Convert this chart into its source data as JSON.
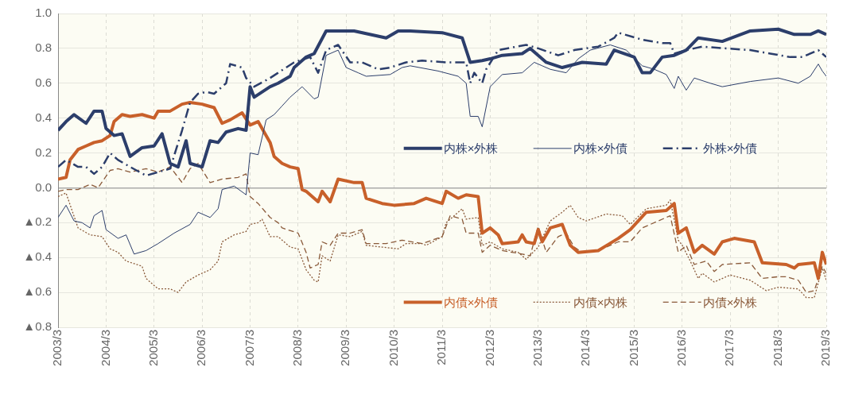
{
  "chart_data": {
    "type": "line",
    "xlim": [
      "2003-03",
      "2019-03"
    ],
    "xticks": [
      {
        "value": "2003-03",
        "label": "2003/3"
      },
      {
        "value": "2004-03",
        "label": "2004/3"
      },
      {
        "value": "2005-03",
        "label": "2005/3"
      },
      {
        "value": "2006-03",
        "label": "2006/3"
      },
      {
        "value": "2007-03",
        "label": "2007/3"
      },
      {
        "value": "2008-03",
        "label": "2008/3"
      },
      {
        "value": "2009-03",
        "label": "2009/3"
      },
      {
        "value": "2010-03",
        "label": "2010/3"
      },
      {
        "value": "2011-03",
        "label": "2011/3"
      },
      {
        "value": "2012-03",
        "label": "2012/3"
      },
      {
        "value": "2013-03",
        "label": "2013/3"
      },
      {
        "value": "2014-03",
        "label": "2014/3"
      },
      {
        "value": "2015-03",
        "label": "2015/3"
      },
      {
        "value": "2016-03",
        "label": "2016/3"
      },
      {
        "value": "2017-03",
        "label": "2017/3"
      },
      {
        "value": "2018-03",
        "label": "2018/3"
      },
      {
        "value": "2019-03",
        "label": "2019/3"
      }
    ],
    "ylim": [
      -0.8,
      1.0
    ],
    "yticks": [
      {
        "value": -0.8,
        "label": "▲0.8"
      },
      {
        "value": -0.6,
        "label": "▲0.6"
      },
      {
        "value": -0.4,
        "label": "▲0.4"
      },
      {
        "value": -0.2,
        "label": "▲0.2"
      },
      {
        "value": 0,
        "label": "0.0"
      },
      {
        "value": 0.2,
        "label": "0.2"
      },
      {
        "value": 0.4,
        "label": "0.4"
      },
      {
        "value": 0.6,
        "label": "0.6"
      },
      {
        "value": 0.8,
        "label": "0.8"
      },
      {
        "value": 1.0,
        "label": "1.0"
      }
    ],
    "grid": true,
    "legend": "right",
    "marker": "none",
    "series": [
      {
        "name": "内株×外株",
        "color": "#2c3e6b",
        "line_style": "solid",
        "x": [
          "2003-03",
          "2003-05",
          "2003-07",
          "2003-10",
          "2003-12",
          "2004-02",
          "2004-03",
          "2004-05",
          "2004-07",
          "2004-09",
          "2004-12",
          "2005-03",
          "2005-05",
          "2005-07",
          "2005-09",
          "2005-11",
          "2005-12",
          "2006-03",
          "2006-05",
          "2006-07",
          "2006-09",
          "2006-12",
          "2007-02",
          "2007-03",
          "2007-04",
          "2007-08",
          "2007-10",
          "2008-01",
          "2008-02",
          "2008-05",
          "2008-07",
          "2008-10",
          "2009-05",
          "2010-01",
          "2010-04",
          "2010-07",
          "2011-03",
          "2011-08",
          "2011-10",
          "2012-01",
          "2012-03",
          "2012-06",
          "2012-11",
          "2013-01",
          "2013-05",
          "2013-09",
          "2014-02",
          "2014-08",
          "2014-10",
          "2015-03",
          "2015-05",
          "2015-07",
          "2015-10",
          "2016-01",
          "2016-04",
          "2016-07",
          "2017-01",
          "2017-08",
          "2018-03",
          "2018-07",
          "2018-11",
          "2019-01",
          "2019-03"
        ],
        "values": [
          0.33,
          0.38,
          0.42,
          0.37,
          0.44,
          0.44,
          0.34,
          0.3,
          0.31,
          0.18,
          0.23,
          0.24,
          0.31,
          0.14,
          0.12,
          0.27,
          0.14,
          0.12,
          0.27,
          0.26,
          0.32,
          0.34,
          0.33,
          0.58,
          0.52,
          0.58,
          0.6,
          0.64,
          0.69,
          0.75,
          0.77,
          0.9,
          0.9,
          0.86,
          0.9,
          0.9,
          0.89,
          0.86,
          0.72,
          0.73,
          0.74,
          0.76,
          0.77,
          0.8,
          0.72,
          0.69,
          0.72,
          0.71,
          0.79,
          0.75,
          0.66,
          0.66,
          0.75,
          0.76,
          0.79,
          0.86,
          0.84,
          0.9,
          0.91,
          0.88,
          0.88,
          0.9,
          0.88
        ]
      },
      {
        "name": "内株×外債",
        "color": "#2c3e6b",
        "line_style": "solid",
        "x": [
          "2003-03",
          "2003-05",
          "2003-07",
          "2003-09",
          "2003-11",
          "2003-12",
          "2004-02",
          "2004-03",
          "2004-06",
          "2004-08",
          "2004-10",
          "2005-01",
          "2005-04",
          "2005-08",
          "2005-12",
          "2006-02",
          "2006-05",
          "2006-07",
          "2006-08",
          "2006-11",
          "2007-02",
          "2007-03",
          "2007-05",
          "2007-07",
          "2007-09",
          "2007-11",
          "2008-01",
          "2008-04",
          "2008-07",
          "2008-08",
          "2008-10",
          "2009-01",
          "2009-03",
          "2009-06",
          "2009-08",
          "2010-02",
          "2010-05",
          "2010-07",
          "2011-02",
          "2011-07",
          "2011-09",
          "2011-10",
          "2011-12",
          "2012-01",
          "2012-03",
          "2012-06",
          "2012-11",
          "2013-02",
          "2013-04",
          "2013-06",
          "2013-10",
          "2014-01",
          "2014-04",
          "2014-09",
          "2015-01",
          "2015-05",
          "2015-08",
          "2015-11",
          "2016-01",
          "2016-02",
          "2016-04",
          "2016-06",
          "2016-10",
          "2017-01",
          "2017-08",
          "2018-03",
          "2018-08",
          "2018-11",
          "2019-01",
          "2019-02",
          "2019-03"
        ],
        "values": [
          -0.17,
          -0.1,
          -0.19,
          -0.2,
          -0.23,
          -0.16,
          -0.13,
          -0.24,
          -0.29,
          -0.27,
          -0.38,
          -0.36,
          -0.32,
          -0.26,
          -0.21,
          -0.14,
          -0.17,
          -0.12,
          -0.01,
          0.01,
          -0.04,
          0.2,
          0.19,
          0.39,
          0.42,
          0.47,
          0.52,
          0.58,
          0.51,
          0.52,
          0.76,
          0.79,
          0.69,
          0.66,
          0.64,
          0.65,
          0.69,
          0.7,
          0.67,
          0.64,
          0.6,
          0.41,
          0.41,
          0.35,
          0.58,
          0.65,
          0.66,
          0.72,
          0.7,
          0.68,
          0.66,
          0.74,
          0.79,
          0.82,
          0.79,
          0.7,
          0.68,
          0.65,
          0.57,
          0.64,
          0.56,
          0.63,
          0.6,
          0.58,
          0.61,
          0.63,
          0.6,
          0.64,
          0.71,
          0.67,
          0.64
        ]
      },
      {
        "name": "外株×外債",
        "color": "#2c3e6b",
        "line_style": "dashdot",
        "x": [
          "2003-03",
          "2003-05",
          "2003-08",
          "2003-10",
          "2003-12",
          "2004-02",
          "2004-04",
          "2004-06",
          "2004-09",
          "2005-01",
          "2005-04",
          "2005-07",
          "2005-10",
          "2005-12",
          "2006-02",
          "2006-04",
          "2006-06",
          "2006-09",
          "2006-10",
          "2007-01",
          "2007-02",
          "2007-04",
          "2007-08",
          "2007-10",
          "2008-02",
          "2008-06",
          "2008-08",
          "2008-10",
          "2009-01",
          "2009-04",
          "2009-07",
          "2009-11",
          "2010-02",
          "2010-06",
          "2010-10",
          "2011-04",
          "2011-09",
          "2011-10",
          "2011-11",
          "2012-01",
          "2012-02",
          "2012-05",
          "2012-12",
          "2013-03",
          "2013-08",
          "2013-12",
          "2014-06",
          "2014-10",
          "2014-11",
          "2015-05",
          "2015-10",
          "2015-12",
          "2016-01",
          "2016-04",
          "2016-08",
          "2017-02",
          "2017-08",
          "2018-01",
          "2018-06",
          "2018-09",
          "2019-01",
          "2019-03"
        ],
        "values": [
          0.12,
          0.16,
          0.12,
          0.12,
          0.08,
          0.12,
          0.2,
          0.16,
          0.12,
          0.07,
          0.09,
          0.11,
          0.33,
          0.49,
          0.54,
          0.55,
          0.54,
          0.6,
          0.71,
          0.69,
          0.63,
          0.58,
          0.63,
          0.66,
          0.72,
          0.75,
          0.66,
          0.79,
          0.82,
          0.72,
          0.72,
          0.68,
          0.69,
          0.72,
          0.73,
          0.72,
          0.72,
          0.6,
          0.66,
          0.6,
          0.68,
          0.79,
          0.82,
          0.8,
          0.76,
          0.79,
          0.81,
          0.86,
          0.89,
          0.85,
          0.83,
          0.83,
          0.77,
          0.79,
          0.81,
          0.8,
          0.79,
          0.77,
          0.75,
          0.75,
          0.79,
          0.75
        ]
      },
      {
        "name": "内債×外債",
        "color": "#c8602a",
        "line_style": "solid",
        "x": [
          "2003-03",
          "2003-05",
          "2003-06",
          "2003-08",
          "2003-10",
          "2003-12",
          "2004-02",
          "2004-04",
          "2004-05",
          "2004-07",
          "2004-09",
          "2004-12",
          "2005-03",
          "2005-04",
          "2005-07",
          "2005-10",
          "2005-12",
          "2006-03",
          "2006-06",
          "2006-08",
          "2006-10",
          "2007-01",
          "2007-03",
          "2007-05",
          "2007-08",
          "2007-09",
          "2007-11",
          "2008-01",
          "2008-03",
          "2008-04",
          "2008-05",
          "2008-08",
          "2008-09",
          "2008-11",
          "2009-01",
          "2009-05",
          "2009-07",
          "2009-08",
          "2009-12",
          "2010-03",
          "2010-08",
          "2010-11",
          "2011-03",
          "2011-04",
          "2011-07",
          "2011-09",
          "2011-12",
          "2012-01",
          "2012-03",
          "2012-05",
          "2012-06",
          "2012-10",
          "2012-11",
          "2012-12",
          "2013-02",
          "2013-03",
          "2013-04",
          "2013-06",
          "2013-09",
          "2013-11",
          "2014-01",
          "2014-06",
          "2014-11",
          "2015-02",
          "2015-06",
          "2015-11",
          "2016-01",
          "2016-02",
          "2016-04",
          "2016-06",
          "2016-08",
          "2016-11",
          "2017-01",
          "2017-04",
          "2017-09",
          "2017-11",
          "2018-05",
          "2018-07",
          "2018-08",
          "2018-12",
          "2019-01",
          "2019-02",
          "2019-03"
        ],
        "values": [
          0.05,
          0.06,
          0.16,
          0.22,
          0.24,
          0.26,
          0.27,
          0.3,
          0.38,
          0.42,
          0.41,
          0.42,
          0.4,
          0.44,
          0.44,
          0.48,
          0.49,
          0.48,
          0.46,
          0.37,
          0.39,
          0.43,
          0.36,
          0.38,
          0.26,
          0.18,
          0.14,
          0.12,
          0.11,
          -0.01,
          -0.02,
          -0.08,
          -0.02,
          -0.08,
          0.05,
          0.03,
          0.03,
          -0.06,
          -0.09,
          -0.1,
          -0.09,
          -0.06,
          -0.09,
          -0.02,
          -0.06,
          -0.04,
          -0.05,
          -0.26,
          -0.23,
          -0.27,
          -0.32,
          -0.31,
          -0.27,
          -0.31,
          -0.32,
          -0.24,
          -0.31,
          -0.23,
          -0.21,
          -0.33,
          -0.37,
          -0.36,
          -0.29,
          -0.24,
          -0.14,
          -0.13,
          -0.09,
          -0.26,
          -0.23,
          -0.37,
          -0.33,
          -0.38,
          -0.31,
          -0.29,
          -0.31,
          -0.43,
          -0.44,
          -0.46,
          -0.44,
          -0.43,
          -0.52,
          -0.37,
          -0.44
        ]
      },
      {
        "name": "内債×内株",
        "color": "#8a5a3a",
        "line_style": "dotted",
        "x": [
          "2003-03",
          "2003-05",
          "2003-08",
          "2003-11",
          "2004-02",
          "2004-04",
          "2004-06",
          "2004-08",
          "2004-12",
          "2005-01",
          "2005-04",
          "2005-07",
          "2005-09",
          "2005-11",
          "2006-02",
          "2006-05",
          "2006-07",
          "2006-08",
          "2006-11",
          "2007-02",
          "2007-03",
          "2007-05",
          "2007-06",
          "2007-08",
          "2007-10",
          "2008-01",
          "2008-03",
          "2008-05",
          "2008-07",
          "2008-08",
          "2008-09",
          "2008-11",
          "2009-01",
          "2009-04",
          "2009-07",
          "2009-08",
          "2009-12",
          "2010-04",
          "2010-06",
          "2010-10",
          "2010-11",
          "2011-03",
          "2011-04",
          "2011-08",
          "2011-09",
          "2011-12",
          "2012-01",
          "2012-03",
          "2012-06",
          "2012-10",
          "2012-12",
          "2013-03",
          "2013-06",
          "2013-09",
          "2013-11",
          "2014-01",
          "2014-03",
          "2014-08",
          "2014-12",
          "2015-02",
          "2015-06",
          "2015-11",
          "2015-12",
          "2016-02",
          "2016-03",
          "2016-05",
          "2016-07",
          "2016-08",
          "2016-11",
          "2017-03",
          "2017-08",
          "2017-12",
          "2018-03",
          "2018-08",
          "2018-10",
          "2018-12",
          "2019-02",
          "2019-03"
        ],
        "values": [
          -0.05,
          -0.03,
          -0.23,
          -0.27,
          -0.28,
          -0.35,
          -0.37,
          -0.42,
          -0.45,
          -0.52,
          -0.58,
          -0.58,
          -0.6,
          -0.54,
          -0.5,
          -0.47,
          -0.42,
          -0.31,
          -0.27,
          -0.25,
          -0.21,
          -0.2,
          -0.18,
          -0.28,
          -0.28,
          -0.34,
          -0.35,
          -0.47,
          -0.53,
          -0.54,
          -0.39,
          -0.42,
          -0.27,
          -0.28,
          -0.25,
          -0.33,
          -0.34,
          -0.35,
          -0.32,
          -0.32,
          -0.33,
          -0.28,
          -0.2,
          -0.12,
          -0.18,
          -0.17,
          -0.33,
          -0.31,
          -0.35,
          -0.37,
          -0.41,
          -0.34,
          -0.19,
          -0.14,
          -0.1,
          -0.17,
          -0.19,
          -0.15,
          -0.16,
          -0.21,
          -0.12,
          -0.1,
          -0.07,
          -0.3,
          -0.33,
          -0.42,
          -0.52,
          -0.49,
          -0.54,
          -0.5,
          -0.53,
          -0.59,
          -0.57,
          -0.58,
          -0.63,
          -0.63,
          -0.46,
          -0.53
        ]
      },
      {
        "name": "内債×外株",
        "color": "#8a5a3a",
        "line_style": "dashed",
        "x": [
          "2003-03",
          "2003-05",
          "2003-08",
          "2003-11",
          "2004-01",
          "2004-04",
          "2004-06",
          "2004-09",
          "2005-01",
          "2005-04",
          "2005-07",
          "2005-10",
          "2005-12",
          "2006-02",
          "2006-05",
          "2006-08",
          "2006-12",
          "2007-02",
          "2007-03",
          "2007-05",
          "2007-08",
          "2007-10",
          "2007-11",
          "2008-03",
          "2008-05",
          "2008-06",
          "2008-08",
          "2008-09",
          "2008-11",
          "2009-01",
          "2009-04",
          "2009-07",
          "2009-08",
          "2010-01",
          "2010-05",
          "2010-10",
          "2011-03",
          "2011-05",
          "2011-08",
          "2011-09",
          "2011-12",
          "2012-01",
          "2012-03",
          "2012-06",
          "2012-11",
          "2013-01",
          "2013-03",
          "2013-05",
          "2013-08",
          "2013-10",
          "2013-12",
          "2014-02",
          "2014-06",
          "2014-11",
          "2015-02",
          "2015-05",
          "2015-09",
          "2015-12",
          "2016-02",
          "2016-04",
          "2016-06",
          "2016-09",
          "2016-11",
          "2017-01",
          "2017-08",
          "2017-11",
          "2018-03",
          "2018-05",
          "2018-08",
          "2018-10",
          "2018-12",
          "2019-02",
          "2019-03"
        ],
        "values": [
          -0.02,
          -0.01,
          -0.01,
          0.02,
          0.0,
          0.1,
          0.11,
          0.09,
          0.11,
          0.09,
          0.12,
          0.03,
          0.11,
          0.14,
          0.03,
          0.05,
          0.06,
          0.08,
          -0.05,
          -0.09,
          -0.17,
          -0.2,
          -0.23,
          -0.26,
          -0.37,
          -0.46,
          -0.44,
          -0.31,
          -0.33,
          -0.26,
          -0.26,
          -0.24,
          -0.32,
          -0.32,
          -0.3,
          -0.32,
          -0.28,
          -0.16,
          -0.18,
          -0.26,
          -0.26,
          -0.37,
          -0.33,
          -0.36,
          -0.38,
          -0.39,
          -0.22,
          -0.37,
          -0.28,
          -0.26,
          -0.34,
          -0.37,
          -0.36,
          -0.31,
          -0.31,
          -0.23,
          -0.19,
          -0.16,
          -0.37,
          -0.33,
          -0.44,
          -0.42,
          -0.48,
          -0.44,
          -0.43,
          -0.52,
          -0.51,
          -0.51,
          -0.53,
          -0.6,
          -0.59,
          -0.45,
          -0.49
        ]
      }
    ]
  }
}
